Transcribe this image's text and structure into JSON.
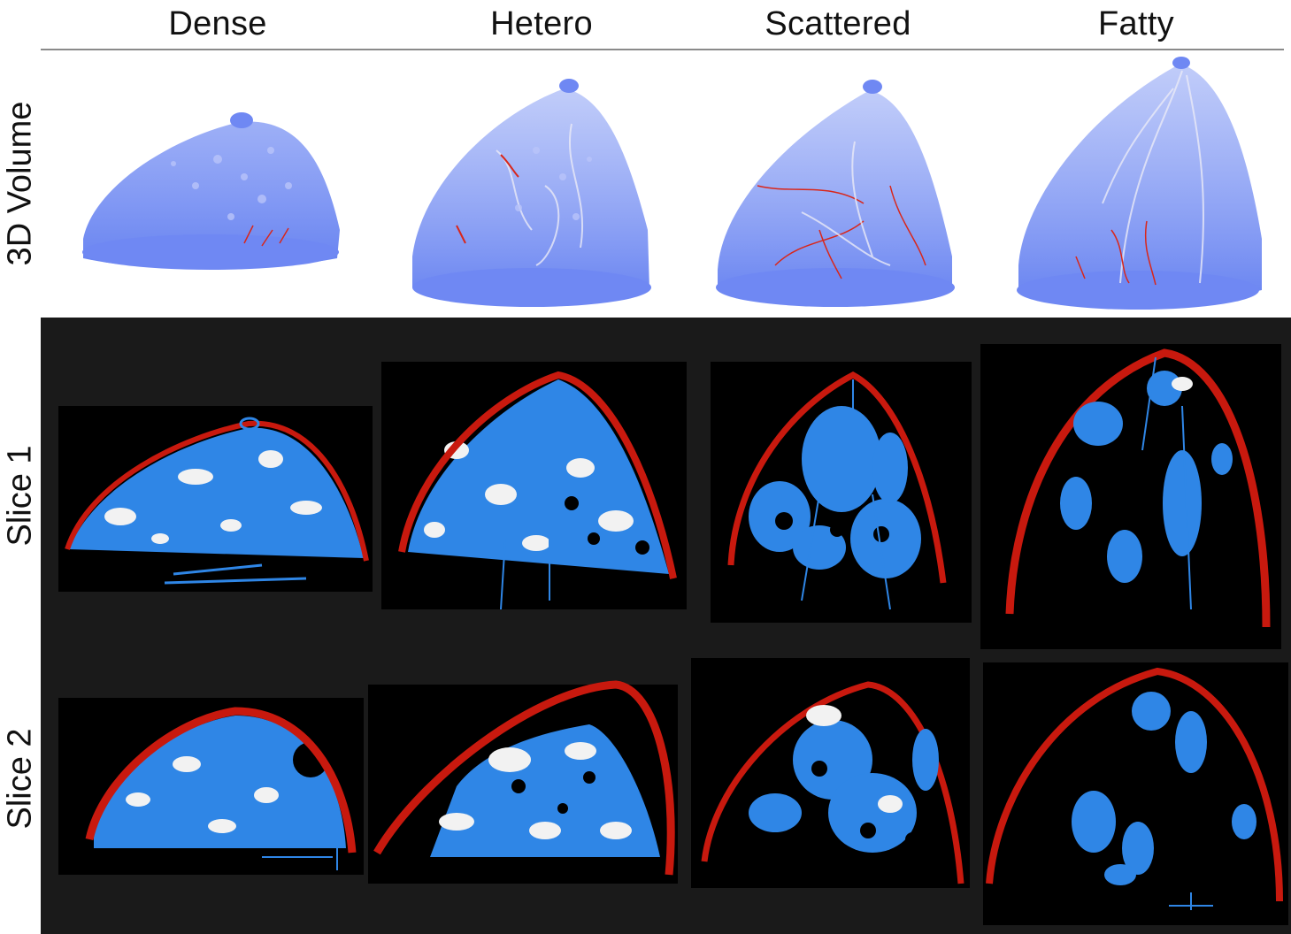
{
  "columns": [
    {
      "key": "dense",
      "label": "Dense"
    },
    {
      "key": "hetero",
      "label": "Hetero"
    },
    {
      "key": "scattered",
      "label": "Scattered"
    },
    {
      "key": "fatty",
      "label": "Fatty"
    }
  ],
  "rows": [
    {
      "key": "volume",
      "label": "3D Volume"
    },
    {
      "key": "slice1",
      "label": "Slice 1"
    },
    {
      "key": "slice2",
      "label": "Slice 2"
    }
  ],
  "colors": {
    "volume_blue": "#6b84f2",
    "tissue_blue": "#2f86e6",
    "skin_red": "#c8190e",
    "vessel_red": "#d9261a",
    "fat_white": "#f2f2f2",
    "slice_bg": "#1a1a1a"
  }
}
